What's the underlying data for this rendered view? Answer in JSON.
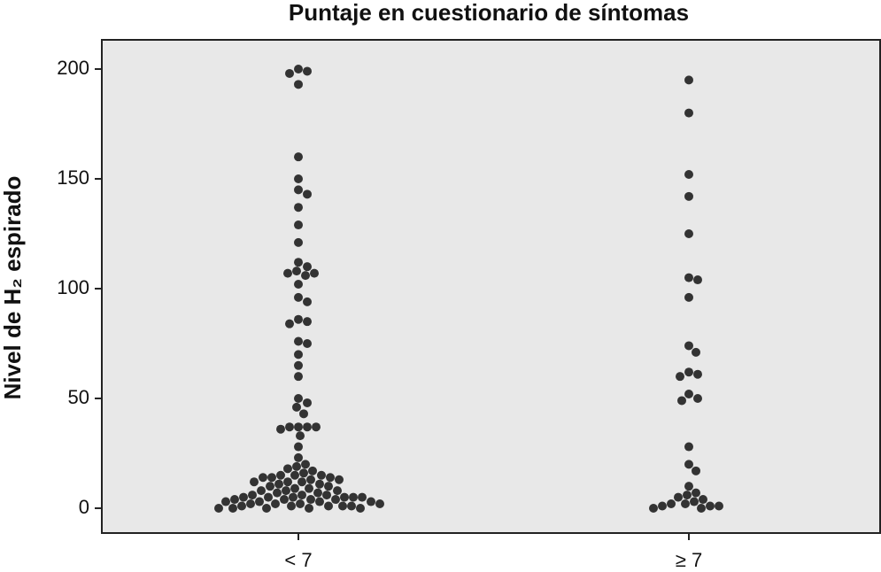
{
  "chart_data": {
    "type": "dot",
    "title": "Puntaje en cuestionario de síntomas",
    "y_label": "Nivel de H₂ espirado",
    "categories": [
      "< 7",
      "≥ 7"
    ],
    "values": [
      [
        200,
        199,
        198,
        193,
        160,
        150,
        145,
        143,
        137,
        129,
        121,
        112,
        110,
        108,
        107,
        107,
        106,
        102,
        96,
        94,
        86,
        85,
        84,
        76,
        75,
        70,
        65,
        60,
        50,
        48,
        46,
        43,
        37,
        37,
        37,
        37,
        36,
        33,
        28,
        23,
        20,
        19,
        18,
        17,
        16,
        15,
        15,
        15,
        14,
        14,
        14,
        13,
        13,
        12,
        12,
        12,
        11,
        11,
        10,
        10,
        9,
        9,
        8,
        8,
        8,
        7,
        7,
        6,
        6,
        6,
        5,
        5,
        5,
        5,
        5,
        5,
        4,
        4,
        4,
        4,
        3,
        3,
        3,
        3,
        2,
        2,
        2,
        2,
        1,
        1,
        1,
        1,
        1,
        0,
        0,
        0,
        0,
        0
      ],
      [
        195,
        180,
        152,
        142,
        125,
        105,
        104,
        96,
        74,
        71,
        62,
        61,
        60,
        52,
        50,
        49,
        28,
        20,
        17,
        10,
        7,
        6,
        5,
        4,
        3,
        2,
        2,
        1,
        1,
        1,
        0,
        0
      ]
    ],
    "color": "#333333",
    "ylim": [
      -11.3,
      213.3
    ],
    "yticks": [
      0,
      50,
      100,
      150,
      200
    ]
  }
}
